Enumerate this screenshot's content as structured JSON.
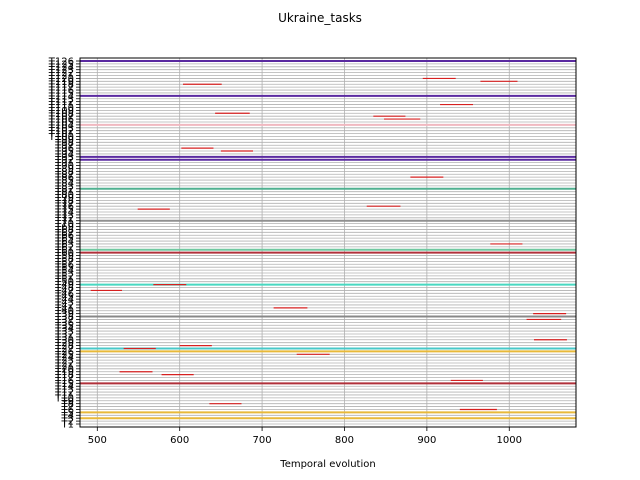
{
  "chart_data": {
    "type": "timeline",
    "title": "Ukraine_tasks",
    "xlabel": "Temporal evolution",
    "xlim": [
      479,
      1081
    ],
    "xticks": [
      500,
      600,
      700,
      800,
      900,
      1000
    ],
    "ylim": [
      1,
      126
    ],
    "grid": true,
    "ytick_labels": [
      "T1",
      "T2",
      "T3",
      "T4",
      "T5",
      "T6",
      "T7",
      "T8",
      "T9",
      "T10",
      "T11",
      "T12",
      "T13",
      "T14",
      "T15",
      "T16",
      "T17",
      "T18",
      "T19",
      "T20",
      "T21",
      "T22",
      "T23",
      "T24",
      "T25",
      "T26",
      "T27",
      "T28",
      "T29",
      "T30",
      "T31",
      "T32",
      "T33",
      "T34",
      "T35",
      "T36",
      "T37",
      "T38",
      "T39",
      "T40",
      "T41",
      "T42",
      "T43",
      "T44",
      "T45",
      "T46",
      "T47",
      "T48",
      "T49",
      "T50",
      "T51",
      "T52",
      "T53",
      "T54",
      "T55",
      "T56",
      "T57",
      "T58",
      "T59",
      "T60",
      "T61",
      "T62",
      "T63",
      "T64",
      "T65",
      "T66",
      "T67",
      "T68",
      "T69",
      "T70",
      "T71",
      "T72",
      "T73",
      "T74",
      "T75",
      "T76",
      "T77",
      "T78",
      "T79",
      "T80",
      "T81",
      "T82",
      "T83",
      "T84",
      "T85",
      "T86",
      "T87",
      "T88",
      "T89",
      "T90",
      "T91",
      "T92",
      "T93",
      "T94",
      "T95",
      "T96",
      "T97",
      "T98",
      "T99",
      "T100",
      "T101",
      "T102",
      "T103",
      "T104",
      "T105",
      "T106",
      "T107",
      "T108",
      "T109",
      "T110",
      "T111",
      "T112",
      "T113",
      "T114",
      "T115",
      "T116",
      "T117",
      "T118",
      "T119",
      "T120",
      "T121",
      "T122",
      "T123",
      "T124",
      "T125",
      "T126"
    ],
    "long_lines": [
      {
        "task": 3,
        "start": 479,
        "end": 1081,
        "color": "#e8b93a"
      },
      {
        "task": 5,
        "start": 479,
        "end": 1081,
        "color": "#e8b93a"
      },
      {
        "task": 15,
        "start": 479,
        "end": 1081,
        "color": "#b0303a"
      },
      {
        "task": 26,
        "start": 479,
        "end": 1081,
        "color": "#e8b93a"
      },
      {
        "task": 27,
        "start": 479,
        "end": 1081,
        "color": "#48c8c8"
      },
      {
        "task": 38,
        "start": 479,
        "end": 1081,
        "color": "#888888"
      },
      {
        "task": 49,
        "start": 479,
        "end": 1081,
        "color": "#48d8c0"
      },
      {
        "task": 60,
        "start": 479,
        "end": 1081,
        "color": "#b0303a"
      },
      {
        "task": 61,
        "start": 479,
        "end": 1081,
        "color": "#70c8a0"
      },
      {
        "task": 71,
        "start": 479,
        "end": 1081,
        "color": "#909090"
      },
      {
        "task": 82,
        "start": 479,
        "end": 1081,
        "color": "#50b090"
      },
      {
        "task": 92,
        "start": 479,
        "end": 1081,
        "color": "#5a2aa0"
      },
      {
        "task": 93,
        "start": 479,
        "end": 1081,
        "color": "#5a2aa0"
      },
      {
        "task": 104,
        "start": 479,
        "end": 1081,
        "color": "#f0b8c0"
      },
      {
        "task": 114,
        "start": 479,
        "end": 1081,
        "color": "#5a2aa0"
      },
      {
        "task": 126,
        "start": 479,
        "end": 1081,
        "color": "#5a2aa0"
      }
    ],
    "tasks": [
      {
        "task": 6,
        "start": 940,
        "end": 985
      },
      {
        "task": 8,
        "start": 636,
        "end": 675
      },
      {
        "task": 16,
        "start": 929,
        "end": 968
      },
      {
        "task": 18,
        "start": 578,
        "end": 617
      },
      {
        "task": 19,
        "start": 527,
        "end": 567
      },
      {
        "task": 25,
        "start": 742,
        "end": 782
      },
      {
        "task": 27,
        "start": 532,
        "end": 571
      },
      {
        "task": 28,
        "start": 600,
        "end": 639
      },
      {
        "task": 30,
        "start": 1030,
        "end": 1070
      },
      {
        "task": 37,
        "start": 1021,
        "end": 1063
      },
      {
        "task": 39,
        "start": 1029,
        "end": 1069
      },
      {
        "task": 41,
        "start": 714,
        "end": 755
      },
      {
        "task": 47,
        "start": 492,
        "end": 530
      },
      {
        "task": 49,
        "start": 568,
        "end": 608
      },
      {
        "task": 63,
        "start": 977,
        "end": 1016
      },
      {
        "task": 75,
        "start": 549,
        "end": 588
      },
      {
        "task": 76,
        "start": 827,
        "end": 868
      },
      {
        "task": 86,
        "start": 880,
        "end": 920
      },
      {
        "task": 95,
        "start": 650,
        "end": 689
      },
      {
        "task": 96,
        "start": 602,
        "end": 641
      },
      {
        "task": 106,
        "start": 848,
        "end": 892
      },
      {
        "task": 107,
        "start": 835,
        "end": 874
      },
      {
        "task": 108,
        "start": 643,
        "end": 685
      },
      {
        "task": 111,
        "start": 916,
        "end": 956
      },
      {
        "task": 118,
        "start": 604,
        "end": 651
      },
      {
        "task": 119,
        "start": 965,
        "end": 1010
      },
      {
        "task": 120,
        "start": 895,
        "end": 935
      }
    ]
  }
}
